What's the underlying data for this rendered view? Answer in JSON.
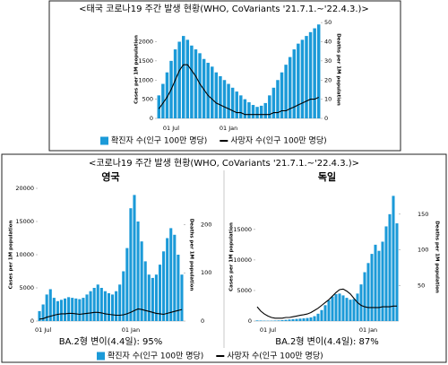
{
  "chart_data": [
    {
      "type": "bar",
      "title": "<태국 코로나19 주간 발생 현황(WHO, CoVariants '21.7.1.~'22.4.3.)>",
      "y_label": "Cases per 1M population",
      "y2_label": "Deaths per 1M population",
      "categories": [
        null,
        null,
        null,
        "01 Jul",
        null,
        null,
        null,
        null,
        null,
        null,
        null,
        null,
        null,
        null,
        null,
        null,
        null,
        "01 Jan",
        null,
        null,
        null,
        null,
        null,
        null,
        null,
        null,
        null,
        null,
        null,
        null,
        null,
        null,
        null,
        null,
        null,
        null,
        null,
        null,
        null,
        null
      ],
      "ylim": [
        0,
        2550
      ],
      "yticks": [
        0,
        500,
        1000,
        1500,
        2000
      ],
      "y2lim": [
        0,
        51
      ],
      "y2ticks": [
        0,
        10,
        20,
        30,
        40,
        50
      ],
      "series": [
        {
          "name": "확진자 수(인구 100만 명당)",
          "color": "#1b9ad8",
          "type": "bar",
          "values": [
            600,
            900,
            1200,
            1500,
            1800,
            2000,
            2150,
            2050,
            1900,
            1800,
            1700,
            1550,
            1450,
            1350,
            1200,
            1100,
            1000,
            900,
            800,
            700,
            600,
            500,
            420,
            350,
            300,
            330,
            400,
            600,
            800,
            1000,
            1200,
            1400,
            1600,
            1800,
            1950,
            2050,
            2150,
            2250,
            2350,
            2450
          ]
        },
        {
          "name": "사망자 수(인구 100만 명당)",
          "color": "#000000",
          "type": "line",
          "axis": "y2",
          "values": [
            5,
            8,
            11,
            15,
            20,
            25,
            28,
            28,
            25,
            22,
            18,
            15,
            12,
            10,
            8,
            7,
            6,
            5,
            4,
            3,
            3,
            2,
            2,
            2,
            2,
            2,
            2,
            2,
            3,
            3,
            4,
            4,
            5,
            6,
            7,
            8,
            9,
            10,
            10,
            11
          ]
        }
      ]
    },
    {
      "type": "bar",
      "title": "<코로나19 주간 발생 현황(WHO, CoVariants '21.7.1.~'22.4.3.)>",
      "subtitle": "영국",
      "annotation": "BA.2형 변이(4.4일): 95%",
      "y_label": "Cases per 1M population",
      "y2_label": "Deaths per 1M population",
      "categories": [
        null,
        "01 Jul",
        null,
        null,
        null,
        null,
        null,
        null,
        null,
        null,
        null,
        null,
        null,
        null,
        null,
        null,
        null,
        null,
        null,
        null,
        null,
        null,
        null,
        null,
        null,
        "01 Jan",
        null,
        null,
        null,
        null,
        null,
        null,
        null,
        null,
        null,
        null,
        null,
        null,
        null,
        null
      ],
      "ylim": [
        0,
        20000
      ],
      "yticks": [
        0,
        5000,
        10000,
        15000,
        20000
      ],
      "y2lim": [
        0,
        275
      ],
      "y2ticks": [
        0,
        100,
        200
      ],
      "series": [
        {
          "name": "확진자 수(인구 100만 명당)",
          "color": "#1b9ad8",
          "type": "bar",
          "values": [
            1500,
            2500,
            4000,
            4800,
            3500,
            3000,
            3200,
            3400,
            3600,
            3500,
            3400,
            3300,
            3500,
            4000,
            4500,
            5000,
            5500,
            5000,
            4500,
            4200,
            4000,
            4500,
            5500,
            7500,
            11000,
            17000,
            19000,
            15000,
            12000,
            9000,
            7000,
            6500,
            7000,
            8500,
            10500,
            12500,
            14000,
            13000,
            10000,
            7000
          ]
        },
        {
          "name": "사망자 수(인구 100만 명당)",
          "color": "#000000",
          "type": "line",
          "axis": "y2",
          "values": [
            4,
            5,
            8,
            10,
            12,
            14,
            15,
            15,
            16,
            16,
            15,
            14,
            15,
            16,
            17,
            18,
            18,
            17,
            15,
            14,
            13,
            12,
            12,
            13,
            15,
            18,
            22,
            25,
            24,
            22,
            20,
            18,
            16,
            15,
            14,
            16,
            18,
            20,
            22,
            24
          ]
        }
      ]
    },
    {
      "type": "bar",
      "subtitle": "독일",
      "annotation": "BA.2형 변이(4.4일): 87%",
      "y_label": "Cases per 1M population",
      "y2_label": "Deaths per 1M population",
      "categories": [
        null,
        null,
        null,
        "01 Jul",
        null,
        null,
        null,
        null,
        null,
        null,
        null,
        null,
        null,
        null,
        null,
        null,
        null,
        null,
        null,
        null,
        null,
        null,
        null,
        null,
        null,
        null,
        null,
        null,
        null,
        null,
        null,
        "01 Jan",
        null,
        null,
        null,
        null,
        null,
        null,
        null,
        null
      ],
      "ylim": [
        0,
        21000
      ],
      "yticks": [
        0,
        5000,
        10000,
        15000
      ],
      "y2lim": [
        0,
        180
      ],
      "y2ticks": [
        50,
        100,
        150
      ],
      "series": [
        {
          "color": "#1b9ad8",
          "type": "bar",
          "values": [
            100,
            80,
            60,
            50,
            60,
            80,
            100,
            150,
            200,
            250,
            300,
            350,
            400,
            450,
            500,
            600,
            800,
            1200,
            1800,
            2600,
            3400,
            4000,
            4400,
            4500,
            4200,
            3800,
            3500,
            3600,
            4500,
            6000,
            8000,
            9500,
            11000,
            12500,
            11500,
            13000,
            15500,
            17500,
            20500,
            16000
          ]
        },
        {
          "color": "#000000",
          "type": "line",
          "axis": "y2",
          "values": [
            20,
            14,
            10,
            7,
            5,
            4,
            4,
            4,
            5,
            5,
            6,
            7,
            8,
            9,
            10,
            12,
            15,
            18,
            22,
            26,
            30,
            35,
            40,
            44,
            45,
            42,
            38,
            32,
            26,
            22,
            20,
            19,
            19,
            19,
            19,
            20,
            20,
            20,
            21,
            21
          ]
        }
      ]
    }
  ]
}
